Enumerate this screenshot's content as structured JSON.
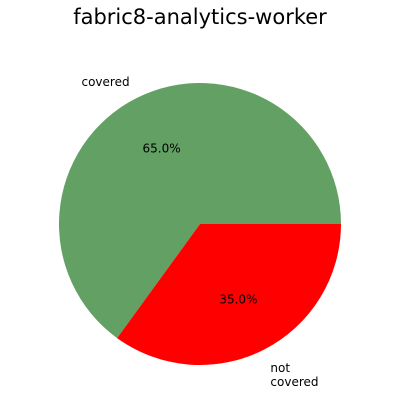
{
  "chart_data": {
    "type": "pie",
    "title": "fabric8-analytics-worker",
    "slices": [
      {
        "label": "covered",
        "label_lines": [
          "covered"
        ],
        "value": 65.0,
        "pct_label": "65.0%",
        "color": "#62a163"
      },
      {
        "label": "not covered",
        "label_lines": [
          "not",
          "covered"
        ],
        "value": 35.0,
        "pct_label": "35.0%",
        "color": "#ff0000"
      }
    ]
  }
}
